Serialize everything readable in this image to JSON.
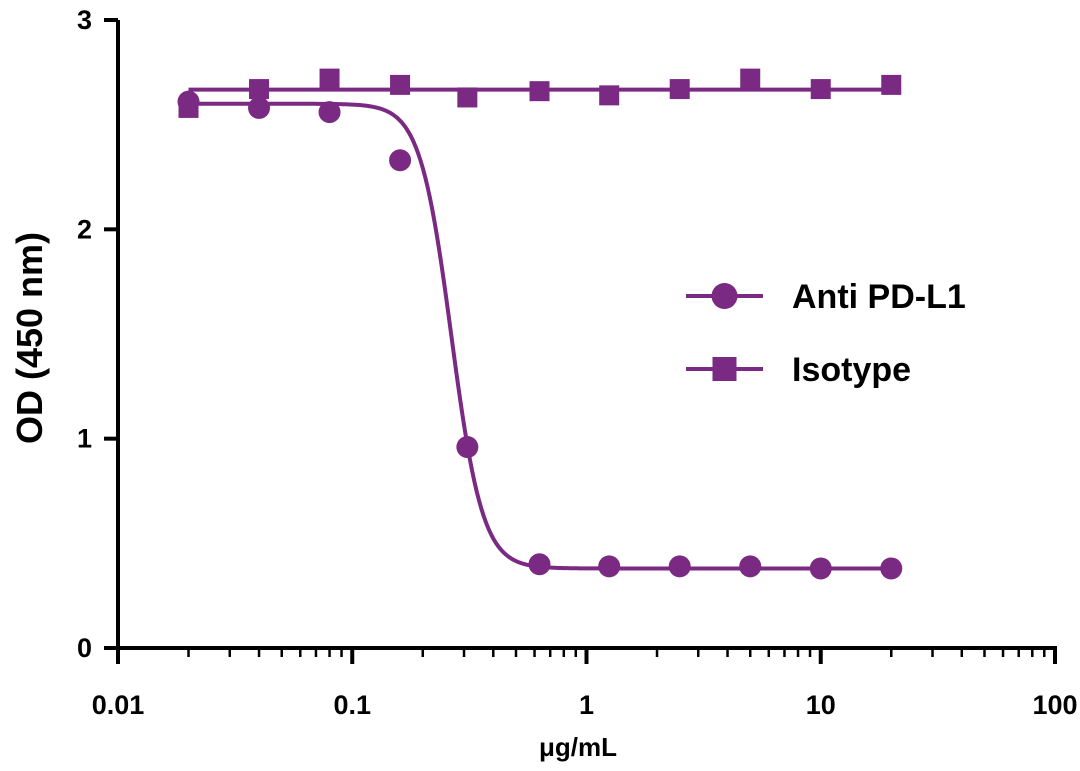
{
  "colors": {
    "series": "#7a2a82",
    "axis": "#000000"
  },
  "chart_data": {
    "type": "line",
    "title": "",
    "xlabel": "μg/mL",
    "ylabel": "OD (450 nm)",
    "x_scale": "log",
    "xlim": [
      0.01,
      100
    ],
    "ylim": [
      0,
      3
    ],
    "x_ticks": [
      "0.01",
      "0.1",
      "1",
      "10",
      "100"
    ],
    "y_ticks": [
      "0",
      "1",
      "2",
      "3"
    ],
    "grid": false,
    "legend_position": "right",
    "series": [
      {
        "name": "Anti PD-L1",
        "marker": "circle",
        "x": [
          0.02,
          0.04,
          0.08,
          0.16,
          0.31,
          0.63,
          1.25,
          2.5,
          5,
          10,
          20
        ],
        "y": [
          2.61,
          2.58,
          2.56,
          2.33,
          0.96,
          0.4,
          0.39,
          0.39,
          0.39,
          0.38,
          0.38
        ]
      },
      {
        "name": "Isotype",
        "marker": "square",
        "x": [
          0.02,
          0.04,
          0.08,
          0.16,
          0.31,
          0.63,
          1.25,
          2.5,
          5,
          10,
          20
        ],
        "y": [
          2.58,
          2.67,
          2.72,
          2.69,
          2.63,
          2.66,
          2.64,
          2.67,
          2.72,
          2.67,
          2.69
        ]
      }
    ]
  }
}
